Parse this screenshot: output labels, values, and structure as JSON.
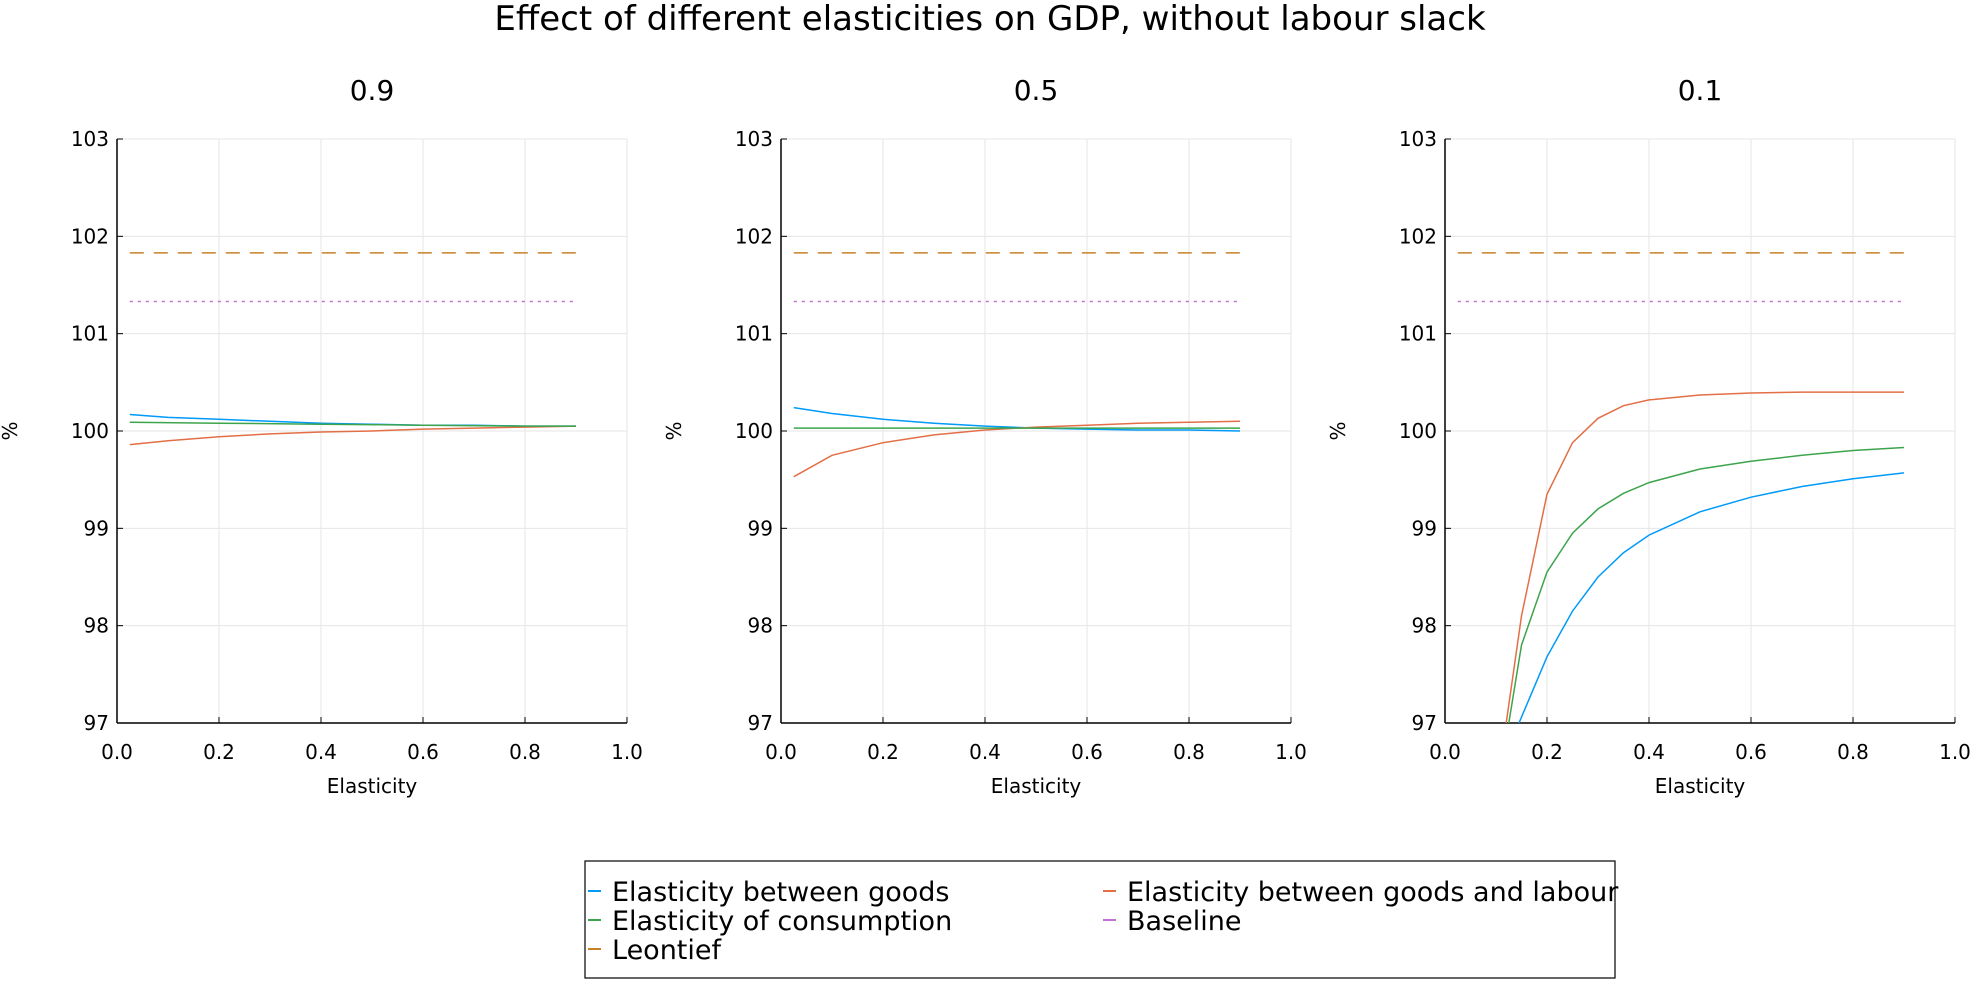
{
  "title": "Effect of different elasticities on GDP, without labour slack",
  "colors": {
    "Elasticity between goods": "#009af9",
    "Elasticity of consumption": "#3da44d",
    "Leontief": "#c68125",
    "Elasticity between goods and labour": "#e26f46",
    "Baseline": "#c271d2"
  },
  "chart_data": [
    {
      "type": "line",
      "title": "0.9",
      "xlabel": "Elasticity",
      "ylabel": "%",
      "xlim": [
        0.0,
        1.0
      ],
      "ylim": [
        97,
        103
      ],
      "xticks": [
        "0.0",
        "0.2",
        "0.4",
        "0.6",
        "0.8",
        "1.0"
      ],
      "yticks": [
        "97",
        "98",
        "99",
        "100",
        "101",
        "102",
        "103"
      ],
      "grid": true,
      "series": [
        {
          "name": "Elasticity between goods",
          "style": "solid",
          "x": [
            0.025,
            0.1,
            0.2,
            0.3,
            0.4,
            0.5,
            0.6,
            0.7,
            0.8,
            0.9
          ],
          "y": [
            100.17,
            100.14,
            100.12,
            100.1,
            100.08,
            100.07,
            100.06,
            100.06,
            100.05,
            100.05
          ]
        },
        {
          "name": "Elasticity between goods and labour",
          "style": "solid",
          "x": [
            0.025,
            0.1,
            0.2,
            0.3,
            0.4,
            0.5,
            0.6,
            0.7,
            0.8,
            0.9
          ],
          "y": [
            99.86,
            99.9,
            99.94,
            99.97,
            99.99,
            100.0,
            100.02,
            100.03,
            100.04,
            100.05
          ]
        },
        {
          "name": "Elasticity of consumption",
          "style": "solid",
          "x": [
            0.025,
            0.2,
            0.4,
            0.6,
            0.8,
            0.9
          ],
          "y": [
            100.09,
            100.08,
            100.07,
            100.06,
            100.05,
            100.05
          ]
        },
        {
          "name": "Leontief",
          "style": "dash",
          "x": [
            0.025,
            0.9
          ],
          "y": [
            101.83,
            101.83
          ]
        },
        {
          "name": "Baseline",
          "style": "dot",
          "x": [
            0.025,
            0.9
          ],
          "y": [
            101.33,
            101.33
          ]
        }
      ]
    },
    {
      "type": "line",
      "title": "0.5",
      "xlabel": "Elasticity",
      "ylabel": "%",
      "xlim": [
        0.0,
        1.0
      ],
      "ylim": [
        97,
        103
      ],
      "xticks": [
        "0.0",
        "0.2",
        "0.4",
        "0.6",
        "0.8",
        "1.0"
      ],
      "yticks": [
        "97",
        "98",
        "99",
        "100",
        "101",
        "102",
        "103"
      ],
      "grid": true,
      "series": [
        {
          "name": "Elasticity between goods",
          "style": "solid",
          "x": [
            0.025,
            0.1,
            0.2,
            0.3,
            0.4,
            0.5,
            0.6,
            0.7,
            0.8,
            0.9
          ],
          "y": [
            100.24,
            100.18,
            100.12,
            100.08,
            100.05,
            100.03,
            100.02,
            100.01,
            100.01,
            100.0
          ]
        },
        {
          "name": "Elasticity between goods and labour",
          "style": "solid",
          "x": [
            0.025,
            0.1,
            0.2,
            0.3,
            0.4,
            0.5,
            0.6,
            0.7,
            0.8,
            0.9
          ],
          "y": [
            99.53,
            99.75,
            99.88,
            99.96,
            100.01,
            100.04,
            100.06,
            100.08,
            100.09,
            100.1
          ]
        },
        {
          "name": "Elasticity of consumption",
          "style": "solid",
          "x": [
            0.025,
            0.3,
            0.6,
            0.9
          ],
          "y": [
            100.03,
            100.03,
            100.03,
            100.03
          ]
        },
        {
          "name": "Leontief",
          "style": "dash",
          "x": [
            0.025,
            0.9
          ],
          "y": [
            101.83,
            101.83
          ]
        },
        {
          "name": "Baseline",
          "style": "dot",
          "x": [
            0.025,
            0.9
          ],
          "y": [
            101.33,
            101.33
          ]
        }
      ]
    },
    {
      "type": "line",
      "title": "0.1",
      "xlabel": "Elasticity",
      "ylabel": "%",
      "xlim": [
        0.0,
        1.0
      ],
      "ylim": [
        97,
        103
      ],
      "xticks": [
        "0.0",
        "0.2",
        "0.4",
        "0.6",
        "0.8",
        "1.0"
      ],
      "yticks": [
        "97",
        "98",
        "99",
        "100",
        "101",
        "102",
        "103"
      ],
      "grid": true,
      "series": [
        {
          "name": "Elasticity between goods",
          "style": "solid",
          "x": [
            0.145,
            0.2,
            0.25,
            0.3,
            0.35,
            0.4,
            0.5,
            0.6,
            0.7,
            0.8,
            0.9
          ],
          "y": [
            97.0,
            97.68,
            98.15,
            98.5,
            98.75,
            98.93,
            99.17,
            99.32,
            99.43,
            99.51,
            99.57
          ]
        },
        {
          "name": "Elasticity between goods and labour",
          "style": "solid",
          "x": [
            0.12,
            0.15,
            0.2,
            0.25,
            0.3,
            0.35,
            0.4,
            0.5,
            0.6,
            0.7,
            0.8,
            0.9
          ],
          "y": [
            97.0,
            98.1,
            99.35,
            99.88,
            100.13,
            100.26,
            100.32,
            100.37,
            100.39,
            100.4,
            100.4,
            100.4
          ]
        },
        {
          "name": "Elasticity of consumption",
          "style": "solid",
          "x": [
            0.125,
            0.15,
            0.2,
            0.25,
            0.3,
            0.35,
            0.4,
            0.5,
            0.6,
            0.7,
            0.8,
            0.9
          ],
          "y": [
            97.0,
            97.8,
            98.55,
            98.95,
            99.2,
            99.36,
            99.47,
            99.61,
            99.69,
            99.75,
            99.8,
            99.83
          ]
        },
        {
          "name": "Leontief",
          "style": "dash",
          "x": [
            0.025,
            0.9
          ],
          "y": [
            101.83,
            101.83
          ]
        },
        {
          "name": "Baseline",
          "style": "dot",
          "x": [
            0.025,
            0.9
          ],
          "y": [
            101.33,
            101.33
          ]
        }
      ]
    }
  ],
  "legend": [
    "Elasticity between goods",
    "Elasticity between goods and labour",
    "Elasticity of consumption",
    "Baseline",
    "Leontief"
  ]
}
